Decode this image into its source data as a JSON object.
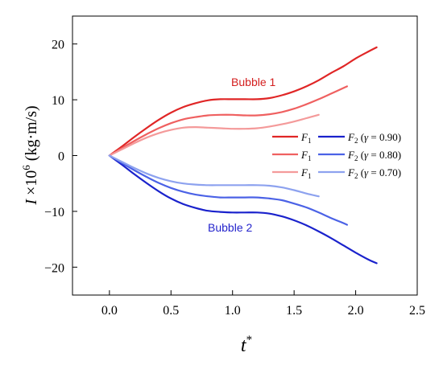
{
  "chart_data": {
    "type": "line",
    "xlabel": "t*",
    "ylabel": "I ×10^6 (kg·m/s)",
    "xlim": [
      -0.3,
      2.5
    ],
    "ylim": [
      -25,
      25
    ],
    "xticks": [
      0.0,
      0.5,
      1.0,
      1.5,
      2.0,
      2.5
    ],
    "xtick_labels": [
      "0.0",
      "0.5",
      "1.0",
      "1.5",
      "2.0",
      "2.5"
    ],
    "yticks": [
      -20,
      -10,
      0,
      10,
      20
    ],
    "ytick_labels": [
      "−20",
      "−10",
      "0",
      "10",
      "20"
    ],
    "legend_placement": "right",
    "annotations": [
      {
        "text": "Bubble 1",
        "color": "#d42020",
        "at": [
          1.17,
          12.5
        ]
      },
      {
        "text": "Bubble 2",
        "color": "#2424cc",
        "at": [
          0.98,
          -13.6
        ]
      }
    ],
    "legend": [
      {
        "f1": "F1",
        "f2": "F2",
        "gamma": "0.90"
      },
      {
        "f1": "F1",
        "f2": "F2",
        "gamma": "0.80"
      },
      {
        "f1": "F1",
        "f2": "F2",
        "gamma": "0.70"
      }
    ],
    "series": [
      {
        "group": "F1 (γ = 0.90)",
        "color": "#e02626",
        "x": [
          0,
          0.1,
          0.2,
          0.3,
          0.4,
          0.5,
          0.6,
          0.7,
          0.8,
          0.9,
          1.0,
          1.1,
          1.2,
          1.3,
          1.4,
          1.5,
          1.6,
          1.7,
          1.8,
          1.9,
          2.0,
          2.1,
          2.17
        ],
        "y": [
          0,
          1.6,
          3.3,
          4.9,
          6.4,
          7.7,
          8.7,
          9.4,
          9.9,
          10.1,
          10.1,
          10.1,
          10.1,
          10.3,
          10.8,
          11.5,
          12.4,
          13.5,
          14.8,
          16.0,
          17.4,
          18.6,
          19.4
        ]
      },
      {
        "group": "F1 (γ = 0.80)",
        "color": "#ef6060",
        "x": [
          0,
          0.1,
          0.2,
          0.3,
          0.4,
          0.5,
          0.6,
          0.7,
          0.8,
          0.9,
          1.0,
          1.1,
          1.2,
          1.3,
          1.4,
          1.5,
          1.6,
          1.7,
          1.8,
          1.9,
          1.93
        ],
        "y": [
          0,
          1.3,
          2.6,
          3.8,
          4.9,
          5.8,
          6.5,
          6.9,
          7.2,
          7.3,
          7.3,
          7.2,
          7.2,
          7.4,
          7.8,
          8.4,
          9.2,
          10.1,
          11.1,
          12.1,
          12.4
        ]
      },
      {
        "group": "F1 (γ = 0.70)",
        "color": "#f49a9a",
        "x": [
          0,
          0.1,
          0.2,
          0.3,
          0.4,
          0.5,
          0.6,
          0.7,
          0.8,
          0.9,
          1.0,
          1.1,
          1.2,
          1.3,
          1.4,
          1.5,
          1.6,
          1.7
        ],
        "y": [
          0,
          1.1,
          2.2,
          3.2,
          4.0,
          4.6,
          5.0,
          5.1,
          5.0,
          4.9,
          4.8,
          4.8,
          4.9,
          5.2,
          5.6,
          6.1,
          6.7,
          7.3
        ]
      },
      {
        "group": "F2 (γ = 0.90)",
        "color": "#1a22cc",
        "x": [
          0,
          0.1,
          0.2,
          0.3,
          0.4,
          0.5,
          0.6,
          0.7,
          0.8,
          0.9,
          1.0,
          1.1,
          1.2,
          1.3,
          1.4,
          1.5,
          1.6,
          1.7,
          1.8,
          1.9,
          2.0,
          2.1,
          2.17
        ],
        "y": [
          0,
          -1.6,
          -3.3,
          -4.9,
          -6.4,
          -7.7,
          -8.7,
          -9.4,
          -9.9,
          -10.1,
          -10.2,
          -10.2,
          -10.2,
          -10.4,
          -10.9,
          -11.6,
          -12.5,
          -13.6,
          -14.8,
          -16.1,
          -17.4,
          -18.6,
          -19.3
        ]
      },
      {
        "group": "F2 (γ = 0.80)",
        "color": "#4b62e6",
        "x": [
          0,
          0.1,
          0.2,
          0.3,
          0.4,
          0.5,
          0.6,
          0.7,
          0.8,
          0.9,
          1.0,
          1.1,
          1.2,
          1.3,
          1.4,
          1.5,
          1.6,
          1.7,
          1.8,
          1.9,
          1.93
        ],
        "y": [
          0,
          -1.3,
          -2.6,
          -3.8,
          -4.9,
          -5.8,
          -6.5,
          -7.0,
          -7.3,
          -7.5,
          -7.5,
          -7.5,
          -7.5,
          -7.7,
          -8.0,
          -8.6,
          -9.3,
          -10.2,
          -11.2,
          -12.1,
          -12.4
        ]
      },
      {
        "group": "F2 (γ = 0.70)",
        "color": "#8da2ef",
        "x": [
          0,
          0.1,
          0.2,
          0.3,
          0.4,
          0.5,
          0.6,
          0.7,
          0.8,
          0.9,
          1.0,
          1.1,
          1.2,
          1.3,
          1.4,
          1.5,
          1.6,
          1.7
        ],
        "y": [
          0,
          -1.1,
          -2.2,
          -3.2,
          -4.0,
          -4.6,
          -5.0,
          -5.2,
          -5.3,
          -5.3,
          -5.3,
          -5.3,
          -5.3,
          -5.4,
          -5.7,
          -6.2,
          -6.8,
          -7.3
        ]
      }
    ]
  }
}
